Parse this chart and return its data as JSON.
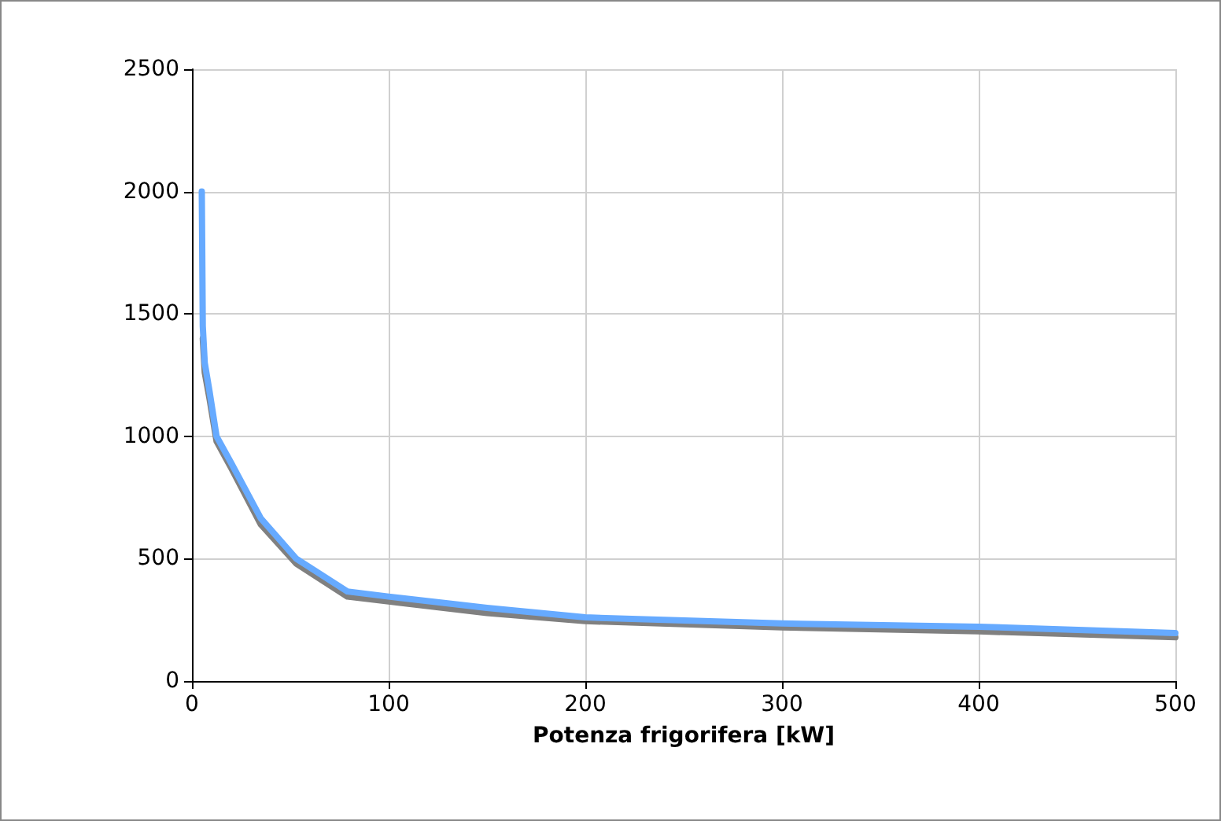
{
  "chart_data": {
    "type": "line",
    "xlabel": "Potenza frigorifera [kW]",
    "xlim": [
      0,
      500
    ],
    "xticks": [
      0,
      100,
      200,
      300,
      400,
      500
    ],
    "ylim": [
      0,
      2500
    ],
    "yticks": [
      0,
      500,
      1000,
      1500,
      2000,
      2500
    ],
    "grid": true,
    "marker": "none",
    "line_style": "solid",
    "series": [
      {
        "color": "#808080",
        "x": [
          5.5,
          6.5,
          9,
          12.5,
          20,
          35,
          53,
          79,
          100,
          150,
          200,
          300,
          400,
          500
        ],
        "values": [
          1400,
          1260,
          1150,
          980,
          870,
          640,
          480,
          345,
          325,
          278,
          245,
          219,
          203,
          179
        ]
      },
      {
        "color": "#66aaff",
        "x": [
          5,
          5.5,
          6.5,
          9,
          12.5,
          20,
          35,
          53,
          79,
          100,
          150,
          200,
          300,
          400,
          500
        ],
        "values": [
          2000,
          1450,
          1300,
          1180,
          1000,
          890,
          665,
          500,
          366,
          345,
          299,
          260,
          235,
          222,
          196
        ]
      }
    ]
  }
}
